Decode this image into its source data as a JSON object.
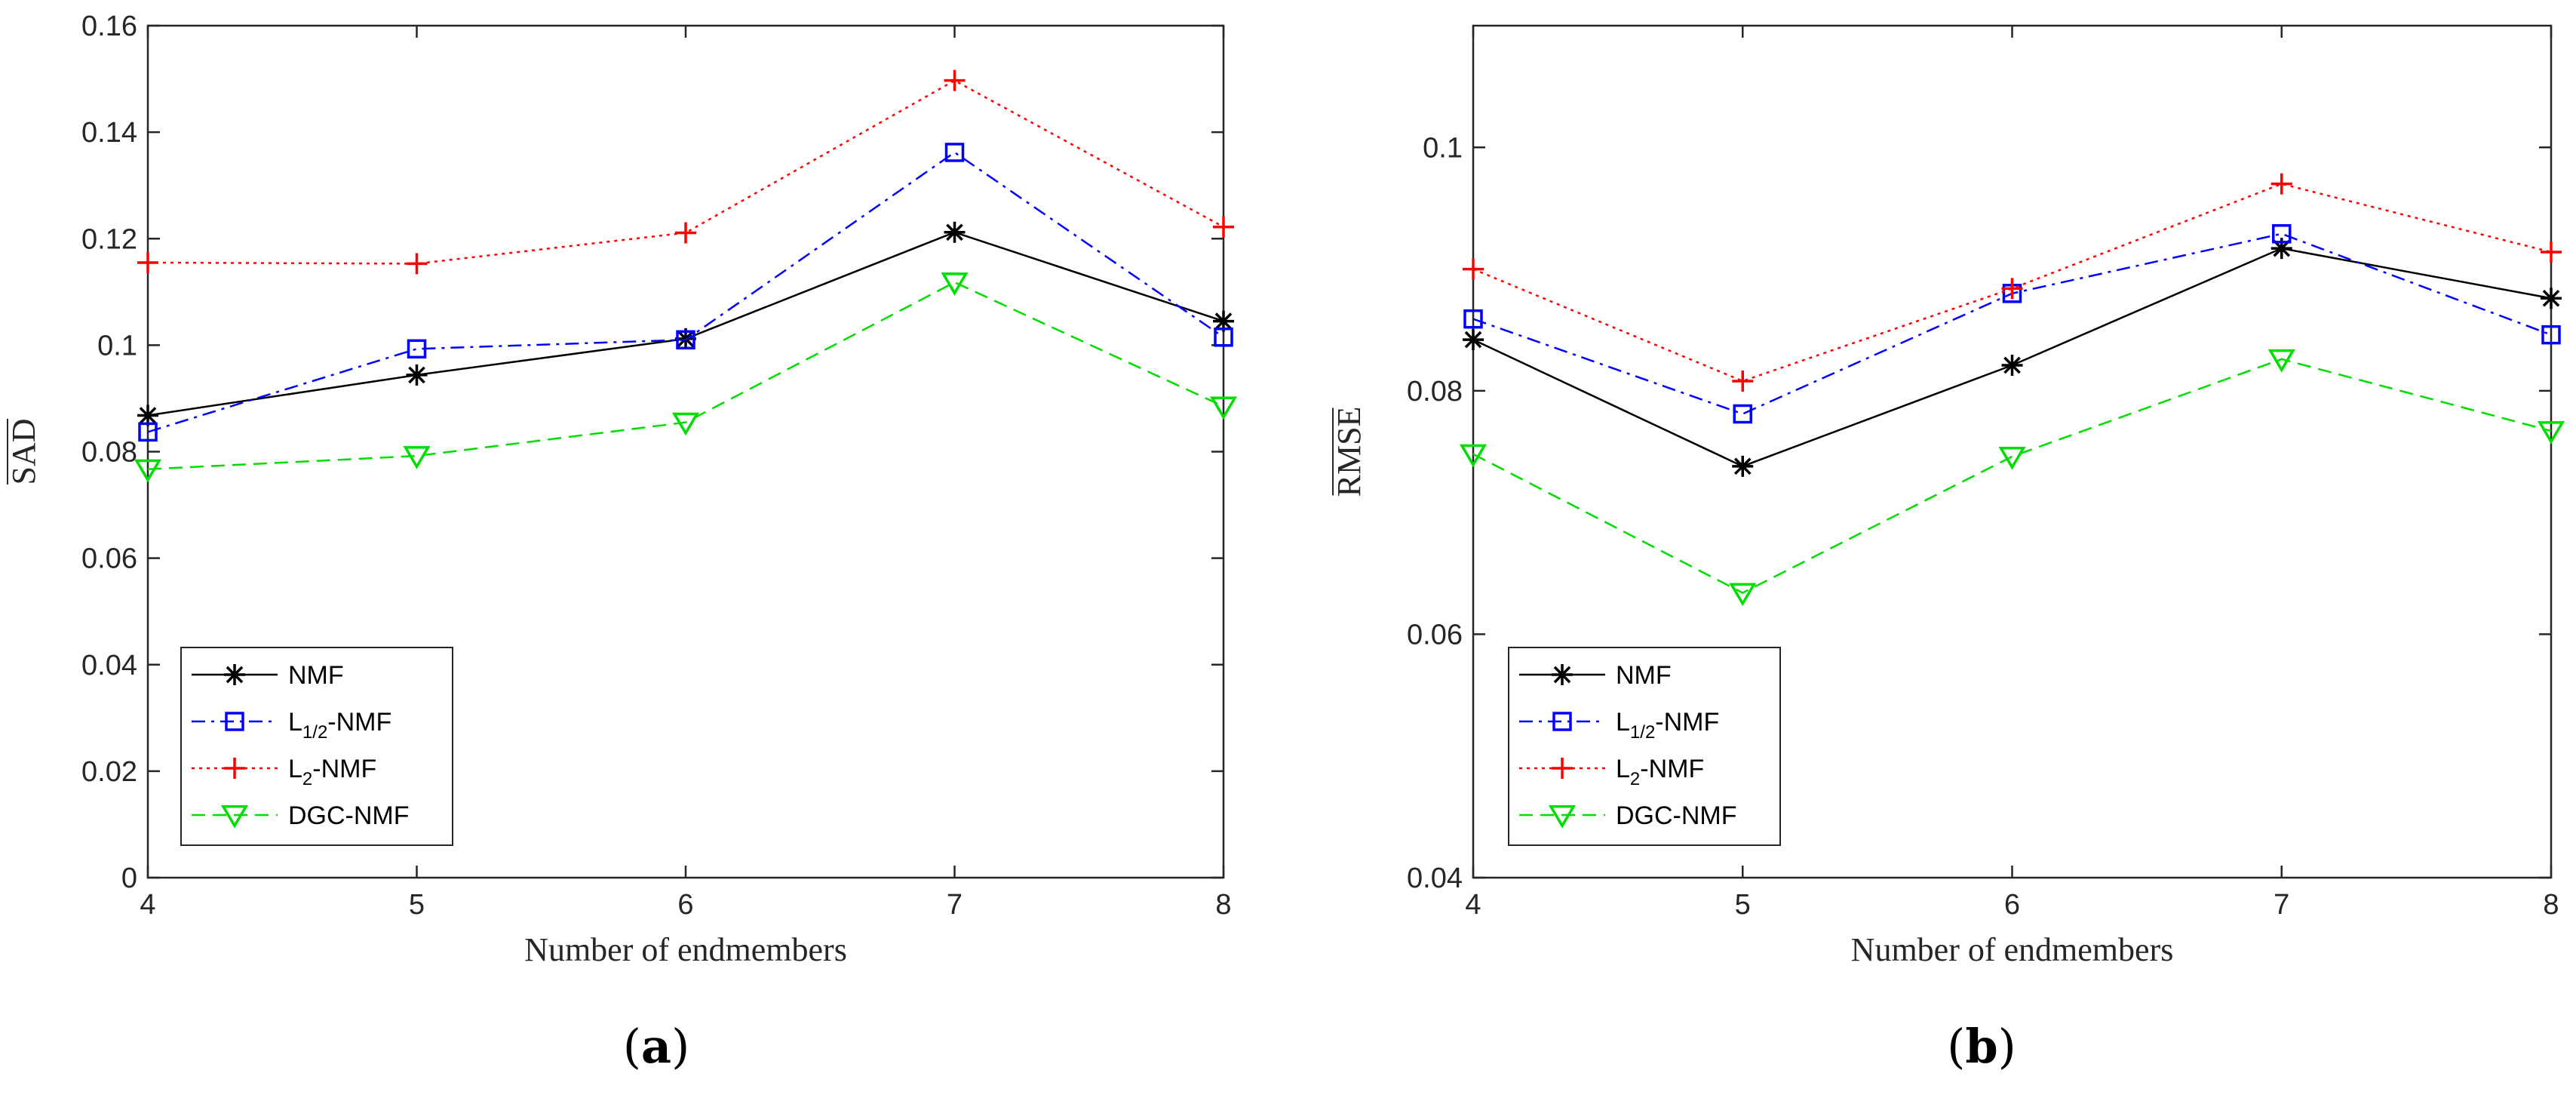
{
  "chart_data": [
    {
      "type": "line",
      "xlabel": "Number of endmembers",
      "ylabel": "SAD",
      "caption_open": "(",
      "caption_letter": "a",
      "caption_close": ")",
      "x": [
        4,
        5,
        6,
        7,
        8
      ],
      "xlim": [
        4,
        8
      ],
      "ylim": [
        0,
        0.16
      ],
      "xticks": [
        "4",
        "5",
        "6",
        "7",
        "8"
      ],
      "yticks": [
        {
          "v": 0,
          "label": "0"
        },
        {
          "v": 0.02,
          "label": "0.02"
        },
        {
          "v": 0.04,
          "label": "0.04"
        },
        {
          "v": 0.06,
          "label": "0.06"
        },
        {
          "v": 0.08,
          "label": "0.08"
        },
        {
          "v": 0.1,
          "label": "0.1"
        },
        {
          "v": 0.12,
          "label": "0.12"
        },
        {
          "v": 0.14,
          "label": "0.14"
        },
        {
          "v": 0.16,
          "label": "0.16"
        }
      ],
      "grid": false,
      "legend_position": "bottom-left",
      "series": [
        {
          "name": "NMF",
          "values": [
            0.0868,
            0.0944,
            0.1012,
            0.1212,
            0.1045
          ]
        },
        {
          "name": "L1/2-NMF",
          "values": [
            0.0837,
            0.0993,
            0.101,
            0.1362,
            0.1015
          ]
        },
        {
          "name": "L2-NMF",
          "values": [
            0.1155,
            0.1153,
            0.1211,
            0.1497,
            0.1222
          ]
        },
        {
          "name": "DGC-NMF",
          "values": [
            0.0767,
            0.0792,
            0.0855,
            0.1118,
            0.0885
          ]
        }
      ]
    },
    {
      "type": "line",
      "xlabel": "Number of endmembers",
      "ylabel": "RMSE",
      "caption_open": "(",
      "caption_letter": "b",
      "caption_close": ")",
      "x": [
        4,
        5,
        6,
        7,
        8
      ],
      "xlim": [
        4,
        8
      ],
      "ylim": [
        0.04,
        0.11
      ],
      "xticks": [
        "4",
        "5",
        "6",
        "7",
        "8"
      ],
      "yticks": [
        {
          "v": 0.04,
          "label": "0.04"
        },
        {
          "v": 0.06,
          "label": "0.06"
        },
        {
          "v": 0.08,
          "label": "0.08"
        },
        {
          "v": 0.1,
          "label": "0.1"
        }
      ],
      "grid": false,
      "legend_position": "bottom-left",
      "series": [
        {
          "name": "NMF",
          "values": [
            0.0842,
            0.0738,
            0.0821,
            0.0917,
            0.0876
          ]
        },
        {
          "name": "L1/2-NMF",
          "values": [
            0.0859,
            0.0781,
            0.088,
            0.0929,
            0.0846
          ]
        },
        {
          "name": "L2-NMF",
          "values": [
            0.09,
            0.0808,
            0.0884,
            0.097,
            0.0914
          ]
        },
        {
          "name": "DGC-NMF",
          "values": [
            0.0748,
            0.0634,
            0.0746,
            0.0826,
            0.0767
          ]
        }
      ]
    }
  ],
  "legend": {
    "entries": [
      {
        "main": "NMF",
        "sub": "",
        "tail": ""
      },
      {
        "main": "L",
        "sub": "1/2",
        "tail": "-NMF"
      },
      {
        "main": "L",
        "sub": "2",
        "tail": "-NMF"
      },
      {
        "main": "DGC-NMF",
        "sub": "",
        "tail": ""
      }
    ]
  },
  "styles": [
    {
      "color": "#000000",
      "dash": "",
      "marker": "asterisk"
    },
    {
      "color": "#0000ff",
      "dash": "18 8 4 8",
      "marker": "square"
    },
    {
      "color": "#ff0000",
      "dash": "4 6",
      "marker": "plus"
    },
    {
      "color": "#00dd00",
      "dash": "18 10",
      "marker": "triangle-down"
    }
  ]
}
